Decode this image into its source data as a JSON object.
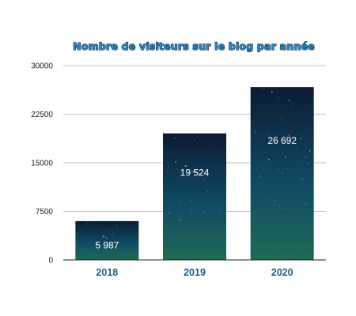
{
  "chart_data": {
    "type": "bar",
    "title": "Nombre de visiteurs sur le blog par année",
    "categories": [
      "2018",
      "2019",
      "2020"
    ],
    "values": [
      5987,
      19524,
      26692
    ],
    "value_labels": [
      "5 987",
      "19 524",
      "26 692"
    ],
    "y_ticks": [
      0,
      7500,
      15000,
      22500,
      30000
    ],
    "ylim": [
      0,
      30000
    ],
    "xlabel": "",
    "ylabel": "",
    "grid": true,
    "legend": "none",
    "bar_fill": "starry night sky gradient",
    "colors": {
      "title": "#2a86c8",
      "title_outline": "#16324a",
      "x_tick_labels": "#1d5f86",
      "data_labels": "#ffffff",
      "bar_top": "#0c1b33",
      "bar_mid": "#0f4a63",
      "bar_bottom": "#1e6a55"
    }
  }
}
